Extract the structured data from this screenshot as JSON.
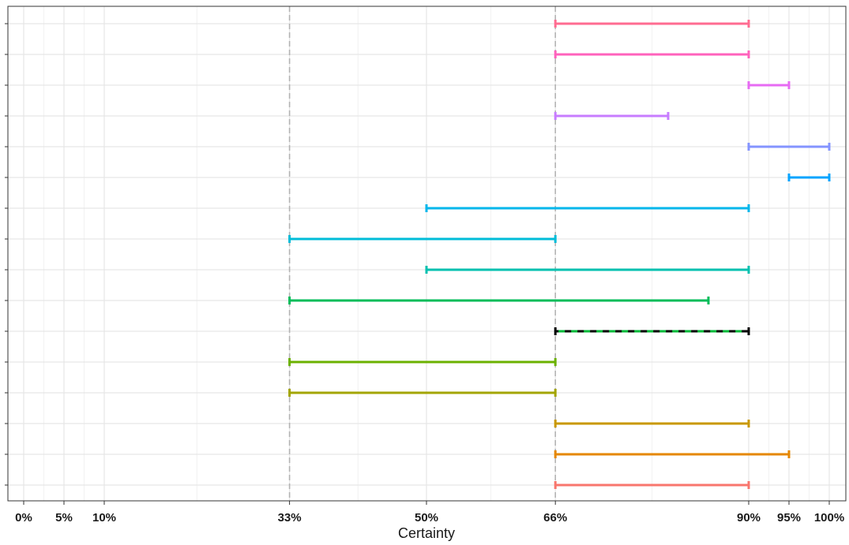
{
  "chart_data": {
    "type": "interval",
    "xlabel": "Certainty",
    "xlim": [
      -0.02,
      1.02
    ],
    "x_ticks": [
      0,
      0.05,
      0.1,
      0.33,
      0.5,
      0.66,
      0.9,
      0.95,
      1.0
    ],
    "x_tick_labels": [
      "0%",
      "5%",
      "10%",
      "33%",
      "50%",
      "66%",
      "90%",
      "95%",
      "100%"
    ],
    "reference_lines": [
      0.33,
      0.66
    ],
    "reference_line_color": "#b3b3b3",
    "grid": true,
    "legend": "none",
    "series": [
      {
        "low": 0.66,
        "high": 0.9,
        "color": "#F8766D",
        "dashed": false
      },
      {
        "low": 0.66,
        "high": 0.95,
        "color": "#E58700",
        "dashed": false
      },
      {
        "low": 0.66,
        "high": 0.9,
        "color": "#C99800",
        "dashed": false
      },
      {
        "low": 0.33,
        "high": 0.66,
        "color": "#A3A500",
        "dashed": false
      },
      {
        "low": 0.33,
        "high": 0.66,
        "color": "#6BB100",
        "dashed": false
      },
      {
        "low": 0.66,
        "high": 0.9,
        "color": "#000000",
        "dash_color": "#00BA38",
        "dashed": true
      },
      {
        "low": 0.33,
        "high": 0.85,
        "color": "#00BC59",
        "dashed": false
      },
      {
        "low": 0.5,
        "high": 0.9,
        "color": "#00C0AF",
        "dashed": false
      },
      {
        "low": 0.33,
        "high": 0.66,
        "color": "#00BCD8",
        "dashed": false
      },
      {
        "low": 0.5,
        "high": 0.9,
        "color": "#00B6EB",
        "dashed": false
      },
      {
        "low": 0.95,
        "high": 1.0,
        "color": "#06A4FF",
        "dashed": false
      },
      {
        "low": 0.9,
        "high": 1.0,
        "color": "#8494FF",
        "dashed": false
      },
      {
        "low": 0.66,
        "high": 0.8,
        "color": "#C77CFF",
        "dashed": false
      },
      {
        "low": 0.9,
        "high": 0.95,
        "color": "#E76BF3",
        "dashed": false
      },
      {
        "low": 0.66,
        "high": 0.9,
        "color": "#FF62BC",
        "dashed": false
      },
      {
        "low": 0.66,
        "high": 0.9,
        "color": "#FF6C91",
        "dashed": false
      }
    ]
  }
}
